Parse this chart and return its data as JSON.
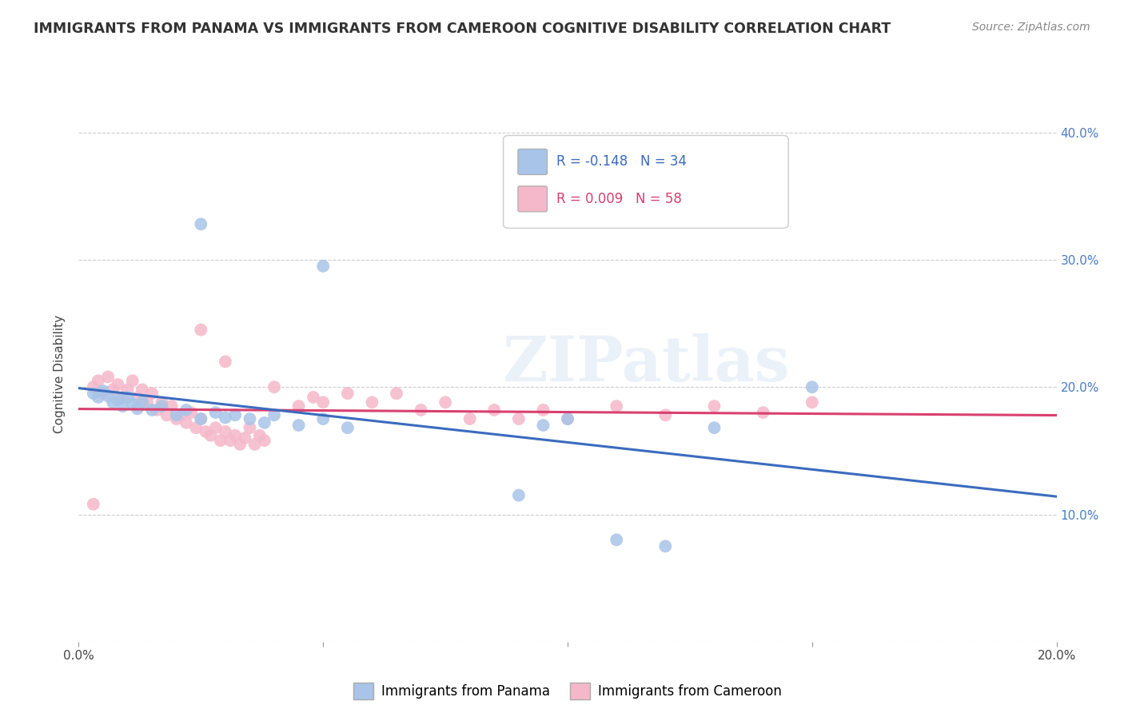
{
  "title": "IMMIGRANTS FROM PANAMA VS IMMIGRANTS FROM CAMEROON COGNITIVE DISABILITY CORRELATION CHART",
  "source": "Source: ZipAtlas.com",
  "ylabel": "Cognitive Disability",
  "xlim": [
    0.0,
    0.2
  ],
  "ylim": [
    0.0,
    0.42
  ],
  "xticks": [
    0.0,
    0.05,
    0.1,
    0.15,
    0.2
  ],
  "yticks": [
    0.0,
    0.1,
    0.2,
    0.3,
    0.4
  ],
  "panama_color": "#a8c4e8",
  "cameroon_color": "#f5b8cb",
  "panama_line_color": "#3a6bbf",
  "cameroon_line_color": "#d94070",
  "R_panama": -0.148,
  "N_panama": 34,
  "R_cameroon": 0.009,
  "N_cameroon": 58,
  "watermark": "ZIPatlas",
  "panama_points": [
    [
      0.003,
      0.195
    ],
    [
      0.004,
      0.192
    ],
    [
      0.005,
      0.197
    ],
    [
      0.006,
      0.193
    ],
    [
      0.007,
      0.188
    ],
    [
      0.008,
      0.19
    ],
    [
      0.009,
      0.185
    ],
    [
      0.01,
      0.192
    ],
    [
      0.011,
      0.187
    ],
    [
      0.012,
      0.183
    ],
    [
      0.013,
      0.188
    ],
    [
      0.015,
      0.182
    ],
    [
      0.017,
      0.185
    ],
    [
      0.02,
      0.178
    ],
    [
      0.022,
      0.182
    ],
    [
      0.025,
      0.175
    ],
    [
      0.028,
      0.18
    ],
    [
      0.03,
      0.176
    ],
    [
      0.032,
      0.178
    ],
    [
      0.035,
      0.175
    ],
    [
      0.038,
      0.172
    ],
    [
      0.04,
      0.178
    ],
    [
      0.045,
      0.17
    ],
    [
      0.05,
      0.175
    ],
    [
      0.055,
      0.168
    ],
    [
      0.025,
      0.328
    ],
    [
      0.05,
      0.295
    ],
    [
      0.09,
      0.115
    ],
    [
      0.095,
      0.17
    ],
    [
      0.1,
      0.175
    ],
    [
      0.13,
      0.168
    ],
    [
      0.15,
      0.2
    ],
    [
      0.11,
      0.08
    ],
    [
      0.12,
      0.075
    ]
  ],
  "cameroon_points": [
    [
      0.003,
      0.2
    ],
    [
      0.004,
      0.205
    ],
    [
      0.005,
      0.195
    ],
    [
      0.006,
      0.208
    ],
    [
      0.007,
      0.198
    ],
    [
      0.008,
      0.202
    ],
    [
      0.009,
      0.192
    ],
    [
      0.01,
      0.198
    ],
    [
      0.011,
      0.205
    ],
    [
      0.012,
      0.192
    ],
    [
      0.013,
      0.198
    ],
    [
      0.014,
      0.188
    ],
    [
      0.015,
      0.195
    ],
    [
      0.016,
      0.182
    ],
    [
      0.017,
      0.188
    ],
    [
      0.018,
      0.178
    ],
    [
      0.019,
      0.185
    ],
    [
      0.02,
      0.175
    ],
    [
      0.021,
      0.178
    ],
    [
      0.022,
      0.172
    ],
    [
      0.023,
      0.18
    ],
    [
      0.024,
      0.168
    ],
    [
      0.025,
      0.175
    ],
    [
      0.026,
      0.165
    ],
    [
      0.027,
      0.162
    ],
    [
      0.028,
      0.168
    ],
    [
      0.029,
      0.158
    ],
    [
      0.03,
      0.165
    ],
    [
      0.031,
      0.158
    ],
    [
      0.032,
      0.162
    ],
    [
      0.033,
      0.155
    ],
    [
      0.034,
      0.16
    ],
    [
      0.035,
      0.168
    ],
    [
      0.036,
      0.155
    ],
    [
      0.037,
      0.162
    ],
    [
      0.038,
      0.158
    ],
    [
      0.025,
      0.245
    ],
    [
      0.03,
      0.22
    ],
    [
      0.04,
      0.2
    ],
    [
      0.045,
      0.185
    ],
    [
      0.048,
      0.192
    ],
    [
      0.05,
      0.188
    ],
    [
      0.055,
      0.195
    ],
    [
      0.06,
      0.188
    ],
    [
      0.065,
      0.195
    ],
    [
      0.07,
      0.182
    ],
    [
      0.075,
      0.188
    ],
    [
      0.08,
      0.175
    ],
    [
      0.085,
      0.182
    ],
    [
      0.09,
      0.175
    ],
    [
      0.095,
      0.182
    ],
    [
      0.1,
      0.175
    ],
    [
      0.11,
      0.185
    ],
    [
      0.12,
      0.178
    ],
    [
      0.13,
      0.185
    ],
    [
      0.14,
      0.18
    ],
    [
      0.15,
      0.188
    ],
    [
      0.003,
      0.108
    ]
  ]
}
